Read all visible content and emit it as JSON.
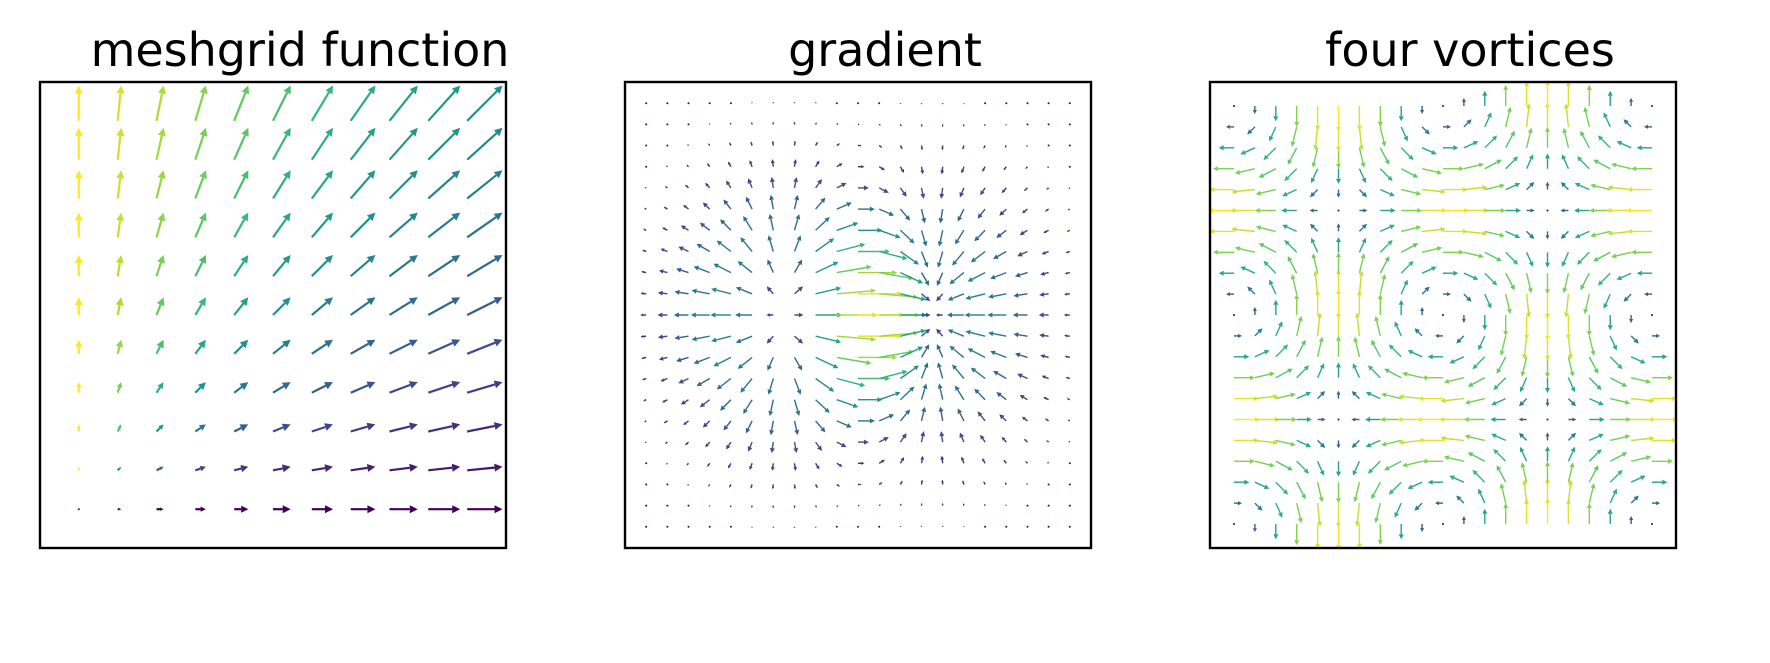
{
  "chart_data": [
    {
      "type": "quiver",
      "title": "meshgrid function",
      "field": "U = X, V = Y",
      "x_range": [
        0,
        2
      ],
      "y_range": [
        0,
        2
      ],
      "grid": [
        11,
        11
      ],
      "xlim": [
        -0.2,
        2.2
      ],
      "ylim": [
        -0.2,
        2.2
      ],
      "color_by": "arctan2(V, U)",
      "colormap": "viridis",
      "ticks": "none",
      "axis_grid": false
    },
    {
      "type": "quiver",
      "title": "gradient",
      "field": "grad of x * exp(-x^2 - y^2)",
      "x_range": [
        -2,
        2
      ],
      "y_range": [
        -2,
        2
      ],
      "grid": [
        21,
        21
      ],
      "xlim": [
        -2.2,
        2.2
      ],
      "ylim": [
        -2.2,
        2.2
      ],
      "color_by": "magnitude",
      "colormap": "viridis",
      "ticks": "none",
      "axis_grid": false
    },
    {
      "type": "quiver",
      "title": "four vortices",
      "field": "U = cos(x) * sin(y), V = -sin(x) * cos(y)",
      "x_range": [
        -3.14,
        3.14
      ],
      "y_range": [
        -3.14,
        3.14
      ],
      "grid": [
        21,
        21
      ],
      "xlim": [
        -3.5,
        3.5
      ],
      "ylim": [
        -3.5,
        3.5
      ],
      "color_by": "magnitude",
      "colormap": "viridis",
      "ticks": "none",
      "axis_grid": false
    }
  ]
}
